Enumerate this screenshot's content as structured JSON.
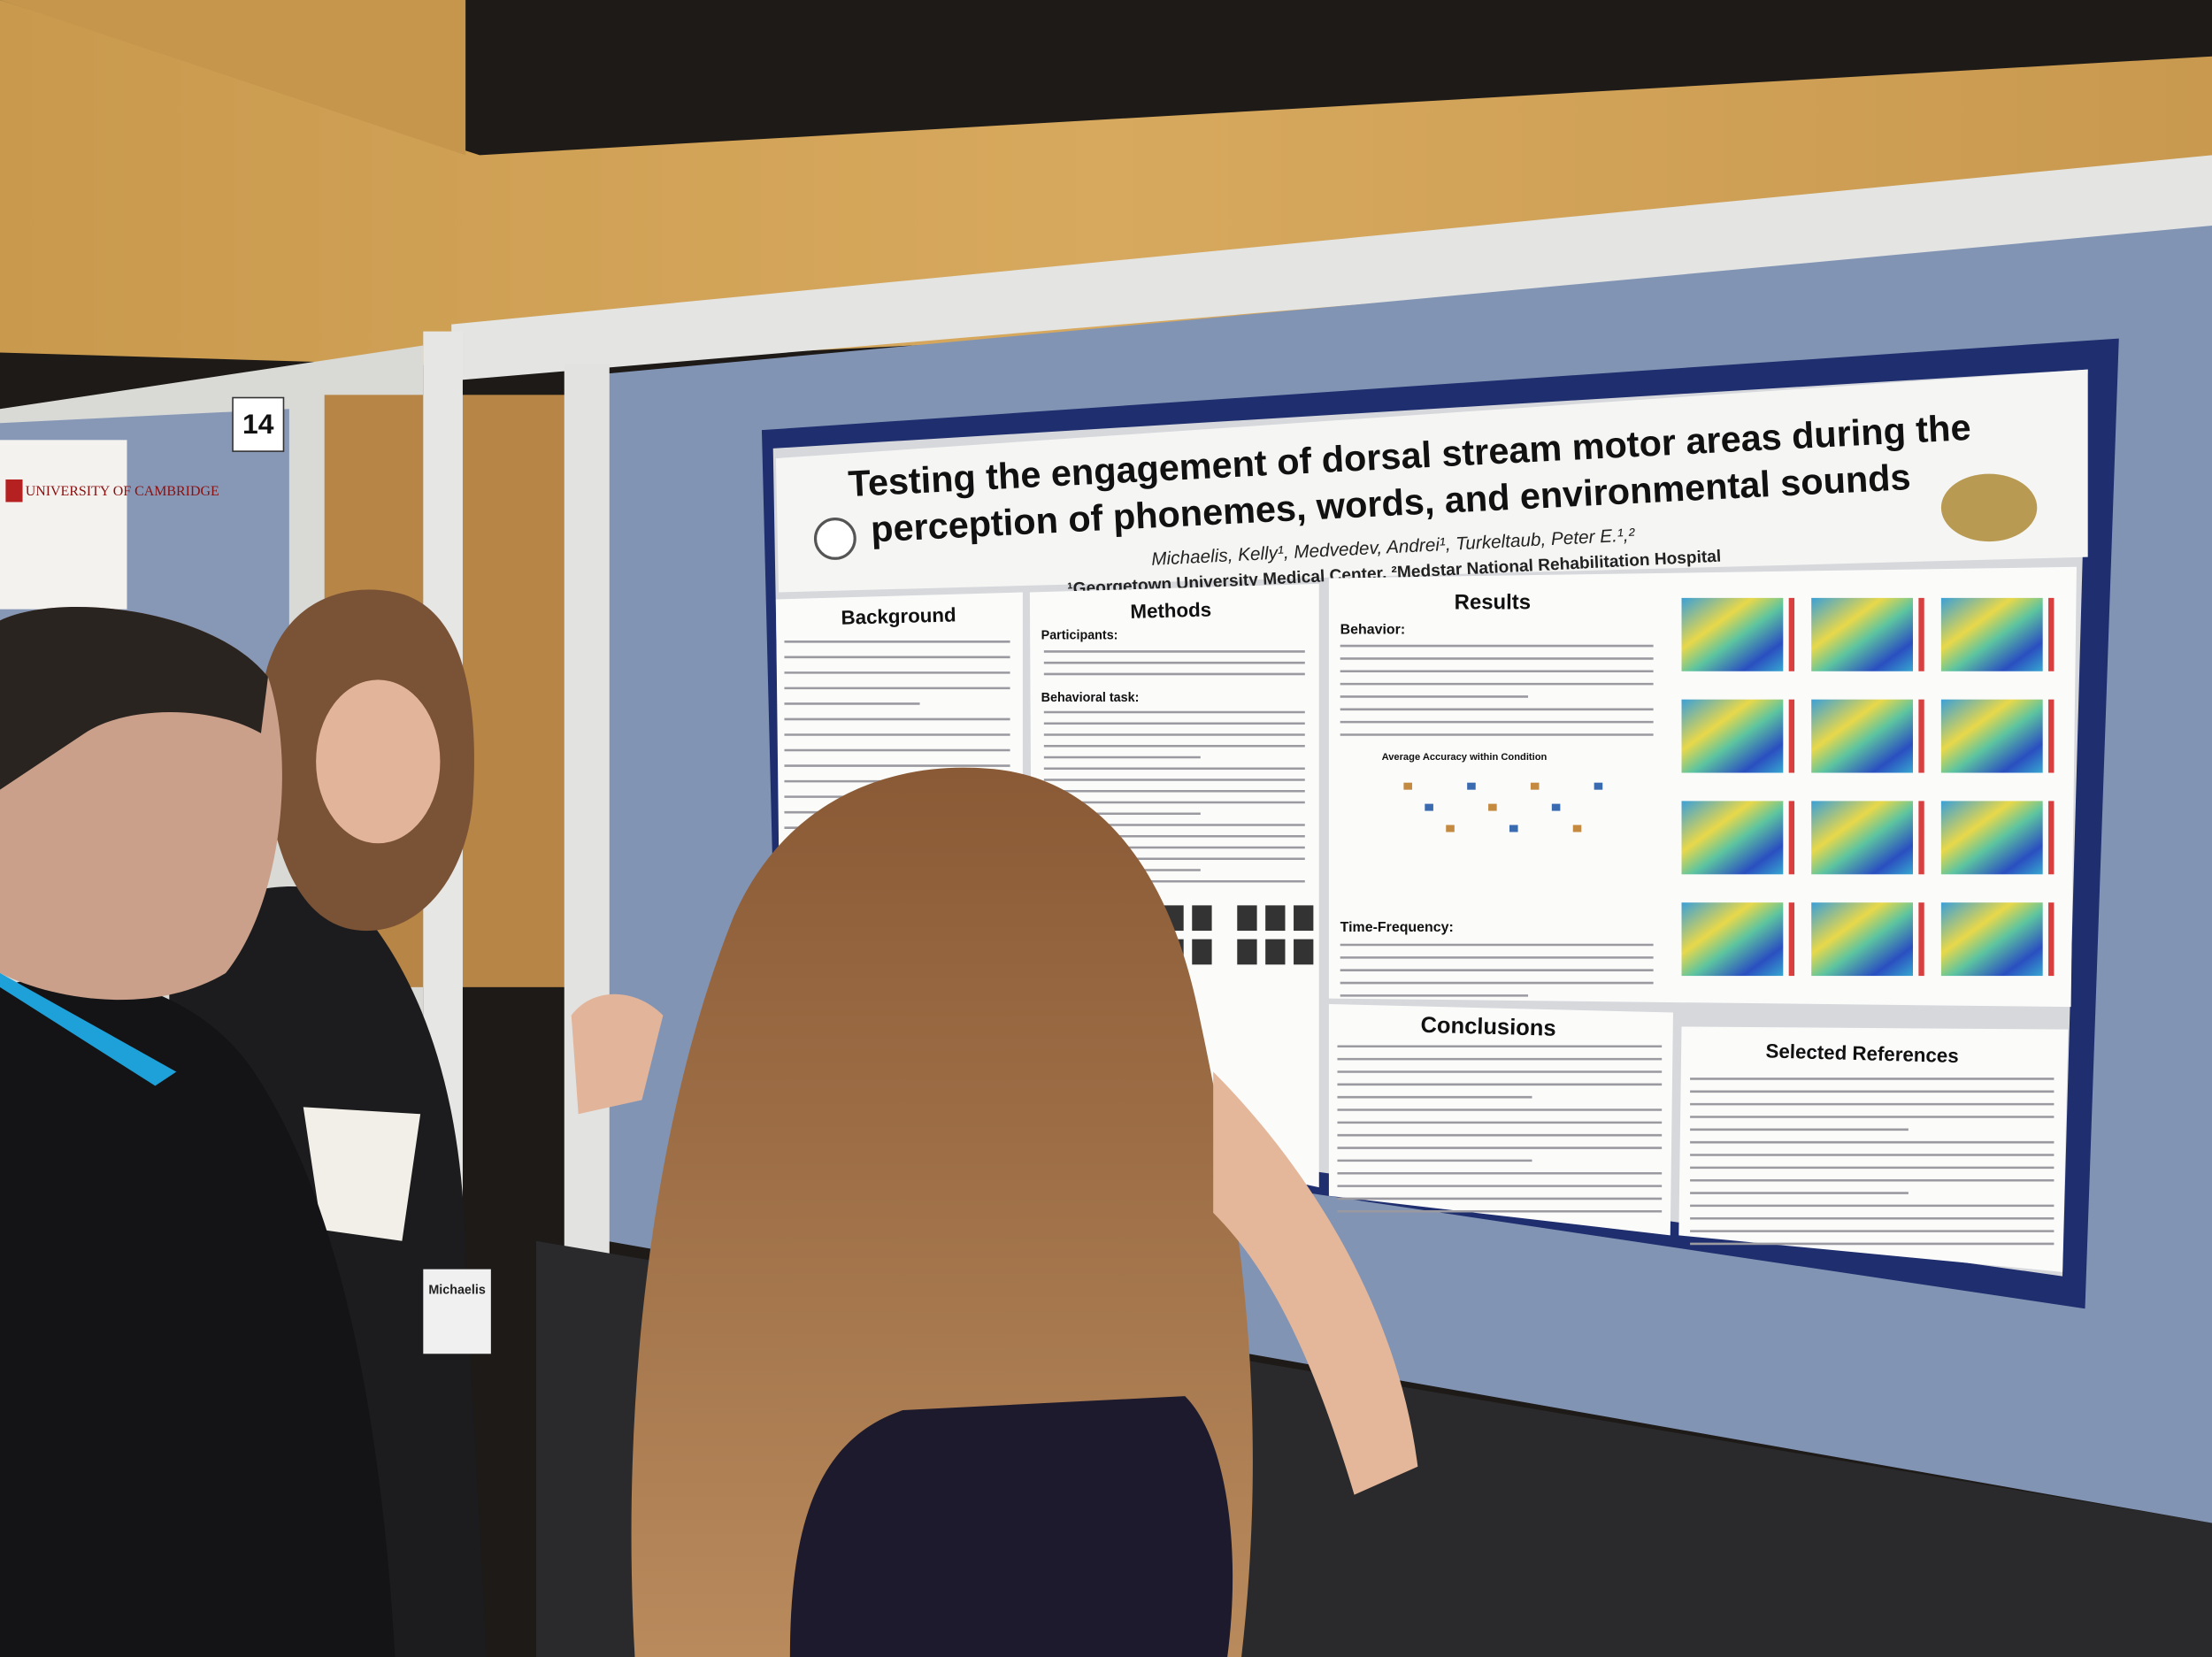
{
  "booth_number": "14",
  "banner": "UNIVERSITY OF CAMBRIDGE",
  "poster": {
    "title_lines": [
      "Testing the engagement of dorsal stream motor areas during the",
      "perception of phonemes, words, and environmental sounds"
    ],
    "authors": "Michaelis, Kelly¹, Medvedev, Andrei¹, Turkeltaub, Peter E.¹,²",
    "affiliations": "¹Georgetown University Medical Center, ²Medstar National Rehabilitation Hospital",
    "sections": [
      "Background",
      "Methods",
      "Results",
      "Conclusions",
      "Selected References"
    ],
    "methods_labels": [
      "Participants:",
      "Behavioral task:"
    ],
    "results_labels": [
      "Behavior:",
      "Time-Frequency:"
    ],
    "figure_title": "Average Accuracy within Condition"
  },
  "name_badge": "Michaelis"
}
